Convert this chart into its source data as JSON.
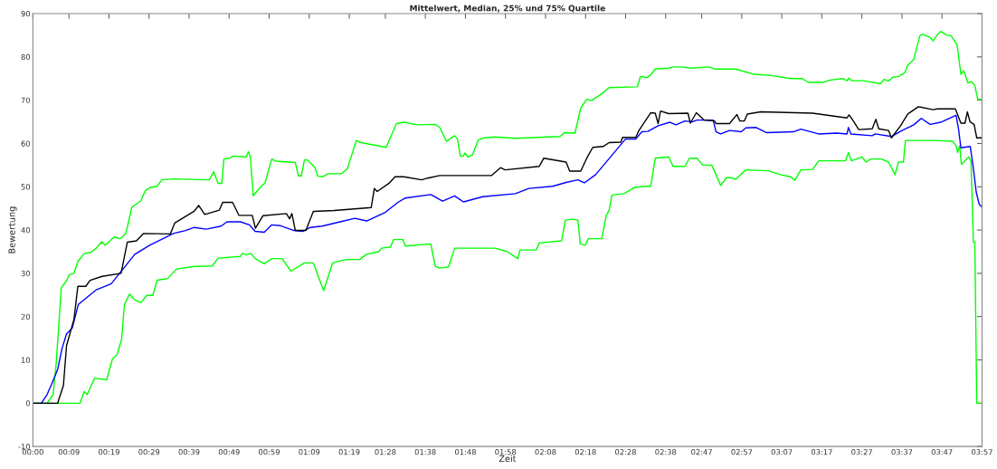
{
  "chart_data": {
    "type": "line",
    "title": "Mittelwert, Median, 25% und 75% Quartile",
    "xlabel": "Zeit",
    "ylabel": "Bewertung",
    "xlim": [
      0,
      3.95
    ],
    "ylim": [
      -10,
      90
    ],
    "xticks": [
      {
        "value": 0,
        "label": "00:00"
      },
      {
        "value": 0.15,
        "label": "00:09"
      },
      {
        "value": 0.3167,
        "label": "00:19"
      },
      {
        "value": 0.4833,
        "label": "00:29"
      },
      {
        "value": 0.65,
        "label": "00:39"
      },
      {
        "value": 0.8167,
        "label": "00:49"
      },
      {
        "value": 0.9833,
        "label": "00:59"
      },
      {
        "value": 1.15,
        "label": "01:09"
      },
      {
        "value": 1.3167,
        "label": "01:19"
      },
      {
        "value": 1.4667,
        "label": "01:28"
      },
      {
        "value": 1.6333,
        "label": "01:38"
      },
      {
        "value": 1.8,
        "label": "01:48"
      },
      {
        "value": 1.9667,
        "label": "01:58"
      },
      {
        "value": 2.1333,
        "label": "02:08"
      },
      {
        "value": 2.3,
        "label": "02:18"
      },
      {
        "value": 2.4667,
        "label": "02:28"
      },
      {
        "value": 2.6333,
        "label": "02:38"
      },
      {
        "value": 2.7833,
        "label": "02:47"
      },
      {
        "value": 2.95,
        "label": "02:57"
      },
      {
        "value": 3.1167,
        "label": "03:07"
      },
      {
        "value": 3.2833,
        "label": "03:17"
      },
      {
        "value": 3.45,
        "label": "03:27"
      },
      {
        "value": 3.6167,
        "label": "03:37"
      },
      {
        "value": 3.7833,
        "label": "03:47"
      },
      {
        "value": 3.95,
        "label": "03:57"
      }
    ],
    "yticks": [
      -10,
      0,
      10,
      20,
      30,
      40,
      50,
      60,
      70,
      80,
      90
    ],
    "series": [
      {
        "color": "#00ff00",
        "x": [
          0,
          0.059,
          0.084,
          0.097,
          0.118,
          0.14,
          0.152,
          0.171,
          0.187,
          0.214,
          0.239,
          0.264,
          0.286,
          0.301,
          0.338,
          0.363,
          0.387,
          0.412,
          0.449,
          0.468,
          0.486,
          0.517,
          0.536,
          0.585,
          0.734,
          0.752,
          0.771,
          0.786,
          0.795,
          0.82,
          0.833,
          0.888,
          0.897,
          0.905,
          0.917,
          0.95,
          0.966,
          0.994,
          1.012,
          1.092,
          1.105,
          1.117,
          1.13,
          1.142,
          1.173,
          1.185,
          1.204,
          1.229,
          1.284,
          1.309,
          1.346,
          1.365,
          1.47,
          1.513,
          1.544,
          1.6,
          1.674,
          1.693,
          1.721,
          1.755,
          1.767,
          1.779,
          1.792,
          1.798,
          1.81,
          1.829,
          1.853,
          1.878,
          1.922,
          2.008,
          2.194,
          2.212,
          2.256,
          2.28,
          2.305,
          2.324,
          2.361,
          2.398,
          2.516,
          2.528,
          2.553,
          2.571,
          2.59,
          2.646,
          2.664,
          2.701,
          2.738,
          2.813,
          2.837,
          2.924,
          2.998,
          3.072,
          3.153,
          3.202,
          3.227,
          3.289,
          3.314,
          3.369,
          3.388,
          3.396,
          3.406,
          3.456,
          3.527,
          3.542,
          3.561,
          3.579,
          3.604,
          3.629,
          3.641,
          3.666,
          3.691,
          3.703,
          3.734,
          3.746,
          3.765,
          3.778,
          3.802,
          3.821,
          3.846,
          3.862,
          3.874,
          3.891,
          3.907,
          3.92,
          3.932,
          3.95
        ],
        "values": [
          0,
          0,
          2.0,
          9.2,
          26.6,
          28.3,
          29.7,
          30.0,
          32.7,
          34.6,
          34.8,
          35.8,
          37.3,
          36.5,
          38.4,
          38.0,
          39.2,
          45.3,
          46.7,
          49.1,
          49.8,
          50.1,
          51.6,
          51.8,
          51.6,
          53.5,
          50.8,
          50.8,
          56.4,
          56.6,
          57.1,
          56.9,
          58.1,
          56.9,
          47.9,
          50.1,
          50.9,
          56.4,
          55.9,
          55.6,
          52.5,
          52.5,
          56.2,
          56.2,
          54.5,
          52.5,
          52.3,
          53.0,
          53.0,
          54.2,
          60.7,
          60.2,
          59.1,
          64.6,
          64.9,
          64.3,
          64.4,
          63.7,
          60.5,
          61.8,
          61.0,
          57.1,
          57.1,
          57.8,
          56.9,
          57.3,
          60.8,
          61.3,
          61.5,
          61.2,
          61.6,
          62.5,
          62.4,
          68.2,
          70.2,
          69.9,
          71.2,
          72.9,
          73.1,
          75.5,
          75.2,
          75.8,
          77.2,
          77.4,
          77.7,
          77.7,
          77.4,
          77.7,
          77.2,
          77.2,
          76.0,
          75.7,
          75.0,
          75.0,
          74.1,
          74.1,
          74.6,
          75.0,
          74.5,
          75.1,
          74.5,
          74.5,
          73.8,
          74.8,
          74.4,
          75.3,
          75.5,
          76.4,
          78.1,
          79.4,
          84.9,
          85.2,
          84.5,
          83.7,
          85.2,
          85.9,
          85.0,
          84.9,
          82.8,
          76.0,
          76.8,
          74.0,
          74.3,
          73.4,
          70.2,
          70.2
        ]
      },
      {
        "color": "#00ff00",
        "x": [
          0,
          0.196,
          0.214,
          0.226,
          0.257,
          0.307,
          0.331,
          0.35,
          0.369,
          0.381,
          0.402,
          0.424,
          0.449,
          0.474,
          0.499,
          0.517,
          0.561,
          0.598,
          0.672,
          0.746,
          0.771,
          0.864,
          0.872,
          0.888,
          0.907,
          0.925,
          0.963,
          0.994,
          1.037,
          1.074,
          1.13,
          1.167,
          1.21,
          1.247,
          1.303,
          1.359,
          1.389,
          1.439,
          1.451,
          1.488,
          1.501,
          1.54,
          1.55,
          1.656,
          1.674,
          1.693,
          1.73,
          1.755,
          1.922,
          1.971,
          2.018,
          2.027,
          2.095,
          2.107,
          2.2,
          2.216,
          2.246,
          2.268,
          2.278,
          2.299,
          2.311,
          2.367,
          2.386,
          2.398,
          2.41,
          2.46,
          2.503,
          2.546,
          2.571,
          2.59,
          2.646,
          2.664,
          2.714,
          2.732,
          2.763,
          2.788,
          2.825,
          2.843,
          2.862,
          2.887,
          2.905,
          2.924,
          2.967,
          3.06,
          3.11,
          3.153,
          3.171,
          3.196,
          3.245,
          3.27,
          3.382,
          3.394,
          3.406,
          3.45,
          3.468,
          3.487,
          3.53,
          3.561,
          3.588,
          3.602,
          3.623,
          3.631,
          3.753,
          3.827,
          3.842,
          3.848,
          3.857,
          3.864,
          3.895,
          3.904,
          3.914,
          3.92,
          3.928,
          3.95
        ],
        "values": [
          0,
          0,
          2.7,
          2.0,
          5.8,
          5.4,
          10.2,
          11.2,
          14.7,
          22.8,
          25.2,
          23.9,
          23.2,
          24.9,
          24.9,
          28.4,
          28.8,
          31.0,
          31.6,
          31.7,
          33.5,
          33.9,
          34.6,
          34.3,
          34.6,
          33.4,
          32.2,
          33.4,
          33.4,
          30.5,
          32.4,
          32.4,
          26.0,
          32.4,
          33.2,
          33.2,
          34.4,
          35.0,
          35.8,
          36.1,
          37.8,
          37.8,
          36.3,
          36.8,
          31.7,
          31.2,
          31.5,
          35.8,
          35.8,
          35.1,
          33.4,
          35.4,
          35.4,
          37.0,
          37.5,
          42.3,
          42.5,
          42.3,
          36.8,
          36.5,
          38.0,
          38.0,
          43.3,
          44.6,
          48.1,
          48.4,
          49.8,
          50.1,
          50.1,
          56.6,
          56.9,
          54.7,
          54.7,
          56.6,
          56.6,
          55.0,
          55.0,
          52.8,
          50.3,
          52.1,
          52.1,
          51.7,
          53.9,
          53.7,
          52.8,
          52.3,
          51.5,
          53.9,
          54.0,
          56.0,
          56.0,
          57.9,
          56.0,
          56.9,
          55.7,
          56.4,
          56.4,
          55.7,
          52.8,
          55.7,
          55.7,
          60.7,
          60.7,
          60.5,
          59.5,
          57.9,
          59.5,
          55.2,
          56.9,
          55.9,
          37.2,
          37.2,
          0,
          0
        ]
      },
      {
        "color": "#0000ff",
        "x": [
          0,
          0.035,
          0.059,
          0.078,
          0.103,
          0.121,
          0.14,
          0.164,
          0.189,
          0.226,
          0.264,
          0.326,
          0.375,
          0.424,
          0.486,
          0.585,
          0.635,
          0.672,
          0.721,
          0.783,
          0.808,
          0.864,
          0.901,
          0.925,
          0.963,
          0.994,
          1.031,
          1.086,
          1.124,
          1.154,
          1.204,
          1.278,
          1.34,
          1.389,
          1.464,
          1.519,
          1.55,
          1.656,
          1.705,
          1.755,
          1.792,
          1.872,
          2.008,
          2.064,
          2.163,
          2.219,
          2.268,
          2.295,
          2.342,
          2.466,
          2.509,
          2.534,
          2.559,
          2.602,
          2.651,
          2.676,
          2.713,
          2.744,
          2.763,
          2.831,
          2.843,
          2.862,
          2.899,
          2.948,
          2.967,
          3.01,
          3.054,
          3.165,
          3.196,
          3.27,
          3.344,
          3.388,
          3.394,
          3.404,
          3.493,
          3.505,
          3.573,
          3.617,
          3.666,
          3.697,
          3.734,
          3.778,
          3.833,
          3.842,
          3.852,
          3.862,
          3.901,
          3.914,
          3.926,
          3.938,
          3.95
        ],
        "values": [
          0,
          0,
          2.0,
          4.4,
          7.8,
          12.6,
          16.0,
          17.4,
          22.8,
          24.5,
          26.2,
          27.6,
          31.0,
          34.4,
          36.5,
          39.2,
          39.9,
          40.6,
          40.2,
          40.9,
          41.9,
          41.9,
          41.2,
          39.7,
          39.5,
          41.2,
          41.0,
          39.9,
          39.7,
          40.6,
          40.9,
          41.9,
          42.7,
          42.1,
          44.0,
          46.4,
          47.4,
          48.2,
          46.7,
          47.9,
          46.5,
          47.7,
          48.4,
          49.6,
          50.1,
          51.0,
          51.6,
          50.9,
          52.8,
          61.0,
          61.0,
          62.7,
          62.8,
          64.1,
          64.9,
          64.3,
          65.2,
          65.0,
          65.4,
          65.4,
          62.7,
          62.2,
          63.0,
          62.7,
          63.6,
          63.7,
          62.5,
          62.7,
          63.3,
          62.2,
          62.4,
          62.2,
          63.7,
          62.2,
          61.8,
          62.2,
          61.6,
          63.0,
          64.3,
          65.8,
          64.4,
          64.9,
          66.3,
          66.5,
          63.4,
          59.0,
          59.3,
          54.2,
          48.7,
          46.0,
          45.3
        ]
      },
      {
        "color": "#000000",
        "x": [
          0,
          0.103,
          0.127,
          0.14,
          0.171,
          0.187,
          0.22,
          0.238,
          0.288,
          0.367,
          0.393,
          0.431,
          0.46,
          0.572,
          0.59,
          0.672,
          0.69,
          0.715,
          0.776,
          0.79,
          0.831,
          0.857,
          0.913,
          0.926,
          0.957,
          1.055,
          1.068,
          1.078,
          1.092,
          1.136,
          1.167,
          1.254,
          1.408,
          1.421,
          1.433,
          1.482,
          1.507,
          1.544,
          1.618,
          1.643,
          1.693,
          1.909,
          1.946,
          1.965,
          2.107,
          2.126,
          2.219,
          2.234,
          2.28,
          2.305,
          2.33,
          2.373,
          2.398,
          2.447,
          2.454,
          2.509,
          2.522,
          2.571,
          2.59,
          2.602,
          2.612,
          2.646,
          2.726,
          2.736,
          2.761,
          2.794,
          2.837,
          2.843,
          2.899,
          2.93,
          2.942,
          2.961,
          2.973,
          3.029,
          3.245,
          3.388,
          3.396,
          3.406,
          3.437,
          3.493,
          3.508,
          3.52,
          3.561,
          3.573,
          3.611,
          3.641,
          3.685,
          3.746,
          3.765,
          3.839,
          3.862,
          3.879,
          3.889,
          3.9,
          3.917,
          3.928,
          3.95
        ],
        "values": [
          0,
          0,
          4.1,
          13.3,
          19.4,
          27,
          27,
          28.4,
          29.3,
          30.0,
          37.2,
          37.5,
          39.2,
          39.1,
          41.6,
          44.4,
          45.7,
          43.6,
          44.6,
          46.4,
          46.4,
          43.4,
          43.4,
          40.4,
          43.3,
          43.8,
          42.6,
          43.8,
          39.9,
          39.9,
          44.3,
          44.5,
          45.2,
          49.6,
          48.9,
          50.8,
          52.3,
          52.3,
          51.6,
          52.0,
          52.6,
          52.6,
          54.4,
          53.9,
          54.7,
          56.6,
          55.7,
          53.6,
          53.6,
          56.6,
          59.1,
          59.3,
          60.2,
          60.3,
          61.4,
          61.4,
          63.0,
          67.1,
          67.0,
          64.6,
          67.5,
          66.9,
          67.0,
          64.7,
          67.1,
          65.4,
          65.2,
          64.6,
          64.6,
          66.7,
          65.2,
          65.2,
          66.8,
          67.3,
          67.0,
          65.9,
          66.6,
          65.9,
          63.2,
          63.4,
          65.6,
          63.4,
          63.0,
          61.3,
          64.1,
          66.8,
          68.5,
          67.8,
          68.0,
          68.0,
          64.7,
          64.7,
          67.3,
          65.0,
          64.4,
          61.3,
          61.3
        ]
      }
    ]
  }
}
